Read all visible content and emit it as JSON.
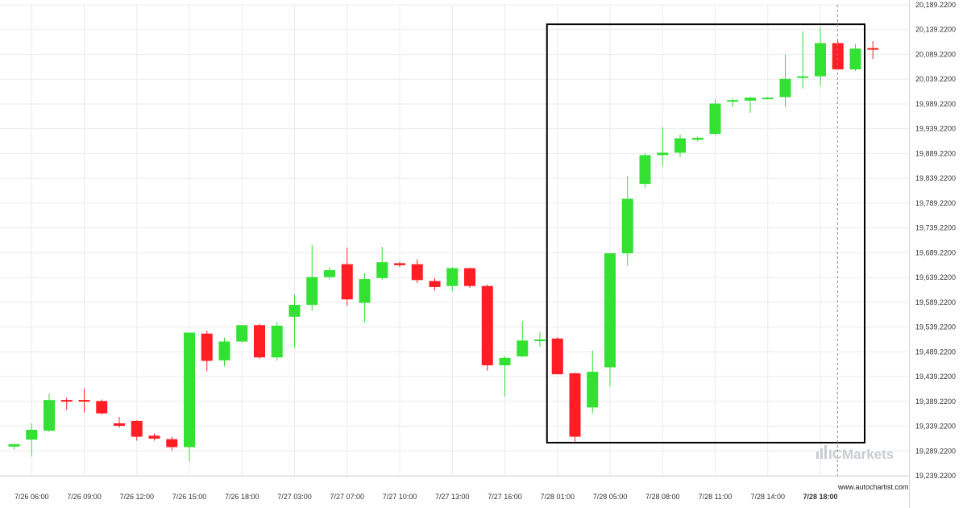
{
  "chart_data": {
    "type": "candlestick",
    "y_axis": {
      "range": [
        19239.22,
        20189.22
      ],
      "ticks": [
        "19,239.2200",
        "19,289.2200",
        "19,339.2200",
        "19,389.2200",
        "19,439.2200",
        "19,489.2200",
        "19,539.2200",
        "19,589.2200",
        "19,639.2200",
        "19,689.2200",
        "19,739.2200",
        "19,789.2200",
        "19,839.2200",
        "19,889.2200",
        "19,939.2200",
        "19,989.2200",
        "20,039.2200",
        "20,089.2200",
        "20,139.2200",
        "20,189.2200"
      ],
      "tick_values": [
        19239.22,
        19289.22,
        19339.22,
        19389.22,
        19439.22,
        19489.22,
        19539.22,
        19589.22,
        19639.22,
        19689.22,
        19739.22,
        19789.22,
        19839.22,
        19889.22,
        19939.22,
        19989.22,
        20039.22,
        20089.22,
        20139.22,
        20189.22
      ]
    },
    "x_axis": {
      "labels": [
        "7/26 06:00",
        "7/26 09:00",
        "7/26 12:00",
        "7/26 15:00",
        "7/26 18:00",
        "7/27 03:00",
        "7/27 07:00",
        "7/27 10:00",
        "7/27 13:00",
        "7/27 16:00",
        "7/28 01:00",
        "7/28 05:00",
        "7/28 08:00",
        "7/28 11:00",
        "7/28 14:00",
        "7/28 18:00"
      ],
      "label_index": [
        1,
        4,
        7,
        10,
        13,
        16,
        19,
        22,
        25,
        28,
        31,
        34,
        37,
        40,
        43,
        46
      ],
      "highlight_label": "7/28 18:00"
    },
    "grid": true,
    "candles": [
      {
        "o": 19298,
        "h": 19303,
        "l": 19292,
        "c": 19303
      },
      {
        "o": 19312,
        "h": 19345,
        "l": 19278,
        "c": 19332
      },
      {
        "o": 19330,
        "h": 19405,
        "l": 19328,
        "c": 19392
      },
      {
        "o": 19392,
        "h": 19397,
        "l": 19372,
        "c": 19390
      },
      {
        "o": 19392,
        "h": 19415,
        "l": 19367,
        "c": 19390
      },
      {
        "o": 19390,
        "h": 19393,
        "l": 19363,
        "c": 19365
      },
      {
        "o": 19345,
        "h": 19358,
        "l": 19336,
        "c": 19340
      },
      {
        "o": 19350,
        "h": 19351,
        "l": 19310,
        "c": 19318
      },
      {
        "o": 19320,
        "h": 19325,
        "l": 19310,
        "c": 19314
      },
      {
        "o": 19313,
        "h": 19318,
        "l": 19290,
        "c": 19297
      },
      {
        "o": 19297,
        "h": 19528,
        "l": 19268,
        "c": 19528
      },
      {
        "o": 19526,
        "h": 19532,
        "l": 19450,
        "c": 19471
      },
      {
        "o": 19472,
        "h": 19518,
        "l": 19460,
        "c": 19510
      },
      {
        "o": 19510,
        "h": 19543,
        "l": 19508,
        "c": 19543
      },
      {
        "o": 19543,
        "h": 19546,
        "l": 19475,
        "c": 19478
      },
      {
        "o": 19478,
        "h": 19550,
        "l": 19471,
        "c": 19542
      },
      {
        "o": 19560,
        "h": 19605,
        "l": 19498,
        "c": 19584
      },
      {
        "o": 19584,
        "h": 19705,
        "l": 19572,
        "c": 19640
      },
      {
        "o": 19640,
        "h": 19660,
        "l": 19635,
        "c": 19654
      },
      {
        "o": 19666,
        "h": 19699,
        "l": 19582,
        "c": 19595
      },
      {
        "o": 19588,
        "h": 19648,
        "l": 19549,
        "c": 19636
      },
      {
        "o": 19638,
        "h": 19701,
        "l": 19634,
        "c": 19670
      },
      {
        "o": 19668,
        "h": 19671,
        "l": 19660,
        "c": 19664
      },
      {
        "o": 19666,
        "h": 19676,
        "l": 19628,
        "c": 19634
      },
      {
        "o": 19632,
        "h": 19638,
        "l": 19613,
        "c": 19620
      },
      {
        "o": 19622,
        "h": 19660,
        "l": 19611,
        "c": 19658
      },
      {
        "o": 19658,
        "h": 19659,
        "l": 19618,
        "c": 19622
      },
      {
        "o": 19622,
        "h": 19625,
        "l": 19451,
        "c": 19462
      },
      {
        "o": 19462,
        "h": 19481,
        "l": 19399,
        "c": 19477
      },
      {
        "o": 19480,
        "h": 19552,
        "l": 19478,
        "c": 19512
      },
      {
        "o": 19512,
        "h": 19530,
        "l": 19499,
        "c": 19514
      },
      {
        "o": 19516,
        "h": 19519,
        "l": 19446,
        "c": 19444
      },
      {
        "o": 19446,
        "h": 19447,
        "l": 19308,
        "c": 19318
      },
      {
        "o": 19377,
        "h": 19492,
        "l": 19365,
        "c": 19449
      },
      {
        "o": 19458,
        "h": 19688,
        "l": 19419,
        "c": 19688
      },
      {
        "o": 19688,
        "h": 19844,
        "l": 19663,
        "c": 19798
      },
      {
        "o": 19828,
        "h": 19890,
        "l": 19820,
        "c": 19886
      },
      {
        "o": 19886,
        "h": 19943,
        "l": 19864,
        "c": 19891
      },
      {
        "o": 19891,
        "h": 19928,
        "l": 19882,
        "c": 19920
      },
      {
        "o": 19917,
        "h": 19924,
        "l": 19914,
        "c": 19921
      },
      {
        "o": 19929,
        "h": 19999,
        "l": 19926,
        "c": 19990
      },
      {
        "o": 19995,
        "h": 20001,
        "l": 19983,
        "c": 19997
      },
      {
        "o": 19996,
        "h": 20004,
        "l": 19971,
        "c": 20002
      },
      {
        "o": 20000,
        "h": 20004,
        "l": 19999,
        "c": 20002
      },
      {
        "o": 20003,
        "h": 20089,
        "l": 19983,
        "c": 20040
      },
      {
        "o": 20042,
        "h": 20136,
        "l": 20020,
        "c": 20045
      },
      {
        "o": 20045,
        "h": 20145,
        "l": 20025,
        "c": 20112
      },
      {
        "o": 20112,
        "h": 20118,
        "l": 20058,
        "c": 20059
      },
      {
        "o": 20059,
        "h": 20110,
        "l": 20056,
        "c": 20101
      },
      {
        "o": 20102,
        "h": 20116,
        "l": 20080,
        "c": 20100
      }
    ],
    "pattern_box": {
      "from_index": 31,
      "to_index": 48,
      "low": 19306,
      "high": 20150
    },
    "vline_index": 47,
    "colors": {
      "up": "#33e133",
      "down": "#ff1e23",
      "box": "#000000",
      "grid": "#ebebeb"
    }
  },
  "watermark": {
    "text": "ICMarkets"
  },
  "credit": {
    "text": "www.autochartist.com"
  }
}
